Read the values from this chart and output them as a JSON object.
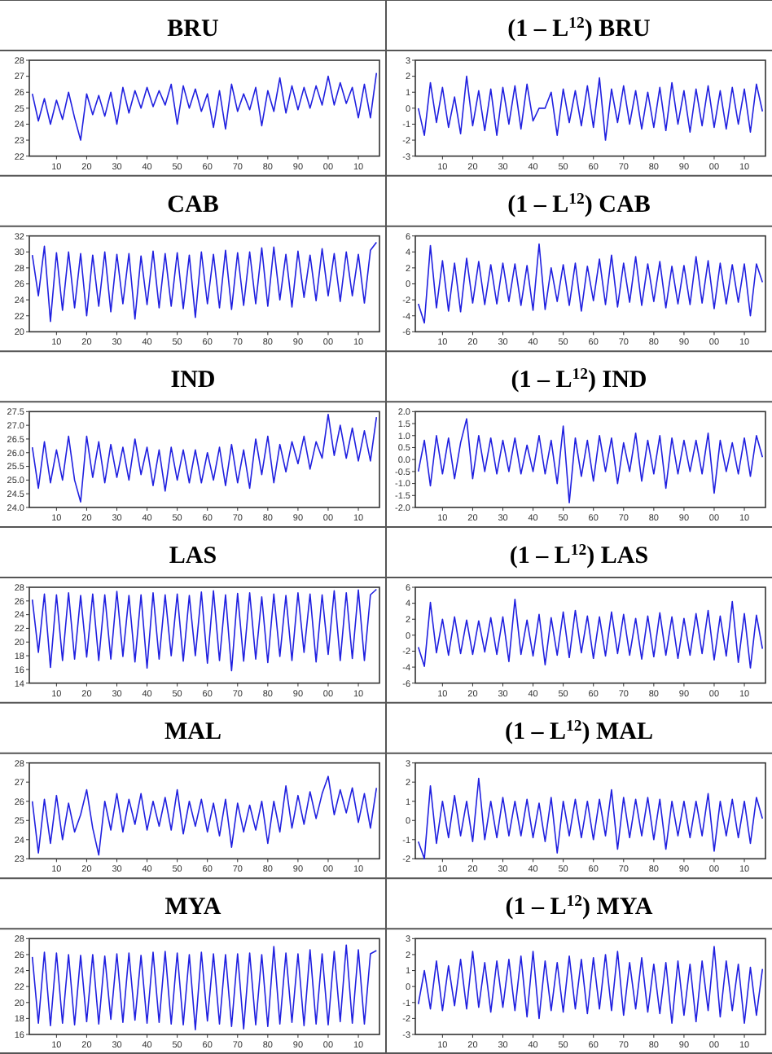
{
  "chart_data": [
    {
      "type": "line",
      "title": "BRU",
      "x": [
        1902,
        1904,
        1906,
        1908,
        1910,
        1912,
        1914,
        1916,
        1918,
        1920,
        1922,
        1924,
        1926,
        1928,
        1930,
        1932,
        1934,
        1936,
        1938,
        1940,
        1942,
        1944,
        1946,
        1948,
        1950,
        1952,
        1954,
        1956,
        1958,
        1960,
        1962,
        1964,
        1966,
        1968,
        1970,
        1972,
        1974,
        1976,
        1978,
        1980,
        1982,
        1984,
        1986,
        1988,
        1990,
        1992,
        1994,
        1996,
        1998,
        2000,
        2002,
        2004,
        2006,
        2008,
        2010,
        2012,
        2014,
        2016
      ],
      "xlim": [
        1901,
        2017
      ],
      "xticks": [
        {
          "value": 1910,
          "label": "10"
        },
        {
          "value": 1920,
          "label": "20"
        },
        {
          "value": 1930,
          "label": "30"
        },
        {
          "value": 1940,
          "label": "40"
        },
        {
          "value": 1950,
          "label": "50"
        },
        {
          "value": 1960,
          "label": "60"
        },
        {
          "value": 1970,
          "label": "70"
        },
        {
          "value": 1980,
          "label": "80"
        },
        {
          "value": 1990,
          "label": "90"
        },
        {
          "value": 2000,
          "label": "00"
        },
        {
          "value": 2010,
          "label": "10"
        }
      ],
      "ylim": [
        22,
        28
      ],
      "yticks": [
        22,
        23,
        24,
        25,
        26,
        27,
        28
      ],
      "series": [
        {
          "color": "#2020e0",
          "values": [
            25.9,
            24.2,
            25.6,
            24.0,
            25.5,
            24.3,
            26.0,
            24.4,
            23.0,
            25.9,
            24.6,
            25.8,
            24.5,
            26.0,
            24.0,
            26.3,
            24.7,
            26.1,
            25.0,
            26.3,
            25.1,
            26.1,
            25.2,
            26.5,
            24.0,
            26.4,
            25.0,
            26.2,
            24.8,
            25.9,
            23.8,
            26.1,
            23.7,
            26.5,
            24.8,
            25.9,
            24.9,
            26.3,
            23.9,
            26.1,
            24.8,
            26.9,
            24.7,
            26.4,
            24.9,
            26.3,
            25.0,
            26.4,
            25.2,
            27.0,
            25.2,
            26.6,
            25.3,
            26.3,
            24.4,
            26.5,
            24.4,
            27.2
          ]
        }
      ]
    },
    {
      "type": "line",
      "title": "(1 – L$^{12}$) BRU",
      "x": [
        1902,
        1904,
        1906,
        1908,
        1910,
        1912,
        1914,
        1916,
        1918,
        1920,
        1922,
        1924,
        1926,
        1928,
        1930,
        1932,
        1934,
        1936,
        1938,
        1940,
        1942,
        1944,
        1946,
        1948,
        1950,
        1952,
        1954,
        1956,
        1958,
        1960,
        1962,
        1964,
        1966,
        1968,
        1970,
        1972,
        1974,
        1976,
        1978,
        1980,
        1982,
        1984,
        1986,
        1988,
        1990,
        1992,
        1994,
        1996,
        1998,
        2000,
        2002,
        2004,
        2006,
        2008,
        2010,
        2012,
        2014,
        2016
      ],
      "xlim": [
        1901,
        2017
      ],
      "xticks": [
        {
          "value": 1910,
          "label": "10"
        },
        {
          "value": 1920,
          "label": "20"
        },
        {
          "value": 1930,
          "label": "30"
        },
        {
          "value": 1940,
          "label": "40"
        },
        {
          "value": 1950,
          "label": "50"
        },
        {
          "value": 1960,
          "label": "60"
        },
        {
          "value": 1970,
          "label": "70"
        },
        {
          "value": 1980,
          "label": "80"
        },
        {
          "value": 1990,
          "label": "90"
        },
        {
          "value": 2000,
          "label": "00"
        },
        {
          "value": 2010,
          "label": "10"
        }
      ],
      "ylim": [
        -3,
        3
      ],
      "yticks": [
        -3,
        -2,
        -1,
        0,
        1,
        2,
        3
      ],
      "series": [
        {
          "color": "#2020e0",
          "values": [
            0.0,
            -1.7,
            1.6,
            -0.9,
            1.3,
            -1.2,
            0.7,
            -1.6,
            2.0,
            -1.1,
            1.1,
            -1.4,
            1.2,
            -1.7,
            1.3,
            -1.0,
            1.4,
            -1.3,
            1.5,
            -0.8,
            0.0,
            0.0,
            1.0,
            -1.7,
            1.2,
            -0.9,
            1.1,
            -1.1,
            1.4,
            -1.2,
            1.9,
            -2.0,
            1.2,
            -0.9,
            1.4,
            -1.0,
            1.1,
            -1.3,
            1.0,
            -1.2,
            1.3,
            -1.4,
            1.6,
            -1.0,
            1.1,
            -1.5,
            1.2,
            -1.1,
            1.4,
            -1.2,
            1.1,
            -1.3,
            1.3,
            -1.0,
            1.2,
            -1.5,
            1.5,
            -0.2
          ]
        }
      ]
    },
    {
      "type": "line",
      "title": "CAB",
      "x": [
        1902,
        1904,
        1906,
        1908,
        1910,
        1912,
        1914,
        1916,
        1918,
        1920,
        1922,
        1924,
        1926,
        1928,
        1930,
        1932,
        1934,
        1936,
        1938,
        1940,
        1942,
        1944,
        1946,
        1948,
        1950,
        1952,
        1954,
        1956,
        1958,
        1960,
        1962,
        1964,
        1966,
        1968,
        1970,
        1972,
        1974,
        1976,
        1978,
        1980,
        1982,
        1984,
        1986,
        1988,
        1990,
        1992,
        1994,
        1996,
        1998,
        2000,
        2002,
        2004,
        2006,
        2008,
        2010,
        2012,
        2014,
        2016
      ],
      "xlim": [
        1901,
        2017
      ],
      "xticks": [
        {
          "value": 1910,
          "label": "10"
        },
        {
          "value": 1920,
          "label": "20"
        },
        {
          "value": 1930,
          "label": "30"
        },
        {
          "value": 1940,
          "label": "40"
        },
        {
          "value": 1950,
          "label": "50"
        },
        {
          "value": 1960,
          "label": "60"
        },
        {
          "value": 1970,
          "label": "70"
        },
        {
          "value": 1980,
          "label": "80"
        },
        {
          "value": 1990,
          "label": "90"
        },
        {
          "value": 2000,
          "label": "00"
        },
        {
          "value": 2010,
          "label": "10"
        }
      ],
      "ylim": [
        20,
        32
      ],
      "yticks": [
        20,
        22,
        24,
        26,
        28,
        30,
        32
      ],
      "series": [
        {
          "color": "#2020e0",
          "values": [
            29.6,
            24.5,
            30.7,
            21.3,
            29.9,
            22.7,
            30.0,
            23.0,
            29.8,
            22.0,
            29.6,
            23.2,
            30.0,
            22.5,
            29.7,
            23.5,
            29.8,
            21.6,
            29.5,
            23.4,
            30.1,
            23.0,
            29.8,
            23.2,
            29.9,
            22.9,
            29.6,
            21.8,
            30.0,
            23.5,
            29.7,
            23.0,
            30.2,
            22.8,
            29.9,
            23.3,
            30.0,
            23.5,
            30.5,
            23.2,
            30.6,
            24.0,
            29.7,
            23.1,
            30.1,
            24.3,
            29.6,
            23.9,
            30.4,
            24.5,
            29.8,
            23.8,
            30.0,
            24.5,
            29.7,
            23.6,
            30.2,
            31.2
          ]
        }
      ]
    },
    {
      "type": "line",
      "title": "(1 – L$^{12}$) CAB",
      "x": [
        1902,
        1904,
        1906,
        1908,
        1910,
        1912,
        1914,
        1916,
        1918,
        1920,
        1922,
        1924,
        1926,
        1928,
        1930,
        1932,
        1934,
        1936,
        1938,
        1940,
        1942,
        1944,
        1946,
        1948,
        1950,
        1952,
        1954,
        1956,
        1958,
        1960,
        1962,
        1964,
        1966,
        1968,
        1970,
        1972,
        1974,
        1976,
        1978,
        1980,
        1982,
        1984,
        1986,
        1988,
        1990,
        1992,
        1994,
        1996,
        1998,
        2000,
        2002,
        2004,
        2006,
        2008,
        2010,
        2012,
        2014,
        2016
      ],
      "xlim": [
        1901,
        2017
      ],
      "xticks": [
        {
          "value": 1910,
          "label": "10"
        },
        {
          "value": 1920,
          "label": "20"
        },
        {
          "value": 1930,
          "label": "30"
        },
        {
          "value": 1940,
          "label": "40"
        },
        {
          "value": 1950,
          "label": "50"
        },
        {
          "value": 1960,
          "label": "60"
        },
        {
          "value": 1970,
          "label": "70"
        },
        {
          "value": 1980,
          "label": "80"
        },
        {
          "value": 1990,
          "label": "90"
        },
        {
          "value": 2000,
          "label": "00"
        },
        {
          "value": 2010,
          "label": "10"
        }
      ],
      "ylim": [
        -6,
        6
      ],
      "yticks": [
        -6,
        -4,
        -2,
        0,
        2,
        4,
        6
      ],
      "series": [
        {
          "color": "#2020e0",
          "values": [
            -2.5,
            -4.9,
            4.8,
            -3.0,
            2.9,
            -3.4,
            2.6,
            -3.5,
            3.2,
            -2.4,
            2.8,
            -2.6,
            2.4,
            -2.5,
            2.6,
            -2.2,
            2.5,
            -2.7,
            2.3,
            -3.3,
            5.0,
            -3.2,
            2.0,
            -2.2,
            2.4,
            -2.7,
            2.6,
            -3.4,
            2.2,
            -2.1,
            3.1,
            -2.6,
            3.6,
            -2.9,
            2.6,
            -2.3,
            3.4,
            -2.7,
            2.5,
            -2.2,
            2.8,
            -3.0,
            2.2,
            -2.5,
            2.3,
            -2.6,
            3.4,
            -2.4,
            2.9,
            -3.1,
            2.6,
            -2.5,
            2.4,
            -2.3,
            2.5,
            -4.0,
            2.5,
            0.2
          ]
        }
      ]
    },
    {
      "type": "line",
      "title": "IND",
      "x": [
        1902,
        1904,
        1906,
        1908,
        1910,
        1912,
        1914,
        1916,
        1918,
        1920,
        1922,
        1924,
        1926,
        1928,
        1930,
        1932,
        1934,
        1936,
        1938,
        1940,
        1942,
        1944,
        1946,
        1948,
        1950,
        1952,
        1954,
        1956,
        1958,
        1960,
        1962,
        1964,
        1966,
        1968,
        1970,
        1972,
        1974,
        1976,
        1978,
        1980,
        1982,
        1984,
        1986,
        1988,
        1990,
        1992,
        1994,
        1996,
        1998,
        2000,
        2002,
        2004,
        2006,
        2008,
        2010,
        2012,
        2014,
        2016
      ],
      "xlim": [
        1901,
        2017
      ],
      "xticks": [
        {
          "value": 1910,
          "label": "10"
        },
        {
          "value": 1920,
          "label": "20"
        },
        {
          "value": 1930,
          "label": "30"
        },
        {
          "value": 1940,
          "label": "40"
        },
        {
          "value": 1950,
          "label": "50"
        },
        {
          "value": 1960,
          "label": "60"
        },
        {
          "value": 1970,
          "label": "70"
        },
        {
          "value": 1980,
          "label": "80"
        },
        {
          "value": 1990,
          "label": "90"
        },
        {
          "value": 2000,
          "label": "00"
        },
        {
          "value": 2010,
          "label": "10"
        }
      ],
      "ylim": [
        24,
        27.5
      ],
      "yticks": [
        {
          "value": 24,
          "label": "24.0"
        },
        {
          "value": 24.5,
          "label": "24.5"
        },
        {
          "value": 25,
          "label": "25.0"
        },
        {
          "value": 25.5,
          "label": "25.5"
        },
        {
          "value": 26,
          "label": "26.0"
        },
        {
          "value": 26.5,
          "label": "26.5"
        },
        {
          "value": 27,
          "label": "27.0"
        },
        {
          "value": 27.5,
          "label": "27.5"
        }
      ],
      "series": [
        {
          "color": "#2020e0",
          "values": [
            26.2,
            24.7,
            26.4,
            24.9,
            26.1,
            25.0,
            26.6,
            25.0,
            24.2,
            26.6,
            25.1,
            26.4,
            24.9,
            26.3,
            25.1,
            26.2,
            25.0,
            26.5,
            25.2,
            26.2,
            24.8,
            26.1,
            24.6,
            26.2,
            25.0,
            26.1,
            24.9,
            26.1,
            24.9,
            26.0,
            25.0,
            26.2,
            24.8,
            26.3,
            24.9,
            26.1,
            24.7,
            26.5,
            25.2,
            26.6,
            24.9,
            26.3,
            25.3,
            26.4,
            25.6,
            26.6,
            25.4,
            26.4,
            25.8,
            27.4,
            25.9,
            27.0,
            25.8,
            26.9,
            25.7,
            26.8,
            25.7,
            27.3
          ]
        }
      ]
    },
    {
      "type": "line",
      "title": "(1 – L$^{12}$) IND",
      "x": [
        1902,
        1904,
        1906,
        1908,
        1910,
        1912,
        1914,
        1916,
        1918,
        1920,
        1922,
        1924,
        1926,
        1928,
        1930,
        1932,
        1934,
        1936,
        1938,
        1940,
        1942,
        1944,
        1946,
        1948,
        1950,
        1952,
        1954,
        1956,
        1958,
        1960,
        1962,
        1964,
        1966,
        1968,
        1970,
        1972,
        1974,
        1976,
        1978,
        1980,
        1982,
        1984,
        1986,
        1988,
        1990,
        1992,
        1994,
        1996,
        1998,
        2000,
        2002,
        2004,
        2006,
        2008,
        2010,
        2012,
        2014,
        2016
      ],
      "xlim": [
        1901,
        2017
      ],
      "xticks": [
        {
          "value": 1910,
          "label": "10"
        },
        {
          "value": 1920,
          "label": "20"
        },
        {
          "value": 1930,
          "label": "30"
        },
        {
          "value": 1940,
          "label": "40"
        },
        {
          "value": 1950,
          "label": "50"
        },
        {
          "value": 1960,
          "label": "60"
        },
        {
          "value": 1970,
          "label": "70"
        },
        {
          "value": 1980,
          "label": "80"
        },
        {
          "value": 1990,
          "label": "90"
        },
        {
          "value": 2000,
          "label": "00"
        },
        {
          "value": 2010,
          "label": "10"
        }
      ],
      "ylim": [
        -2,
        2
      ],
      "yticks": [
        {
          "value": -2,
          "label": "-2.0"
        },
        {
          "value": -1.5,
          "label": "-1.5"
        },
        {
          "value": -1,
          "label": "-1.0"
        },
        {
          "value": -0.5,
          "label": "-0.5"
        },
        {
          "value": 0,
          "label": "0.0"
        },
        {
          "value": 0.5,
          "label": "0.5"
        },
        {
          "value": 1,
          "label": "1.0"
        },
        {
          "value": 1.5,
          "label": "1.5"
        },
        {
          "value": 2,
          "label": "2.0"
        }
      ],
      "series": [
        {
          "color": "#2020e0",
          "values": [
            -0.5,
            0.8,
            -1.1,
            1.0,
            -0.6,
            0.9,
            -0.8,
            0.7,
            1.7,
            -0.8,
            1.0,
            -0.5,
            0.9,
            -0.6,
            0.8,
            -0.5,
            0.9,
            -0.6,
            0.6,
            -0.5,
            1.0,
            -0.6,
            0.8,
            -1.0,
            1.4,
            -1.8,
            0.9,
            -0.7,
            0.8,
            -0.9,
            1.0,
            -0.5,
            0.9,
            -1.0,
            0.7,
            -0.5,
            1.1,
            -0.9,
            0.8,
            -0.6,
            1.0,
            -1.2,
            0.9,
            -0.6,
            0.8,
            -0.5,
            0.8,
            -0.6,
            1.1,
            -1.4,
            0.8,
            -0.5,
            0.7,
            -0.6,
            0.9,
            -0.7,
            1.0,
            0.1
          ]
        }
      ]
    },
    {
      "type": "line",
      "title": "LAS",
      "x": [
        1902,
        1904,
        1906,
        1908,
        1910,
        1912,
        1914,
        1916,
        1918,
        1920,
        1922,
        1924,
        1926,
        1928,
        1930,
        1932,
        1934,
        1936,
        1938,
        1940,
        1942,
        1944,
        1946,
        1948,
        1950,
        1952,
        1954,
        1956,
        1958,
        1960,
        1962,
        1964,
        1966,
        1968,
        1970,
        1972,
        1974,
        1976,
        1978,
        1980,
        1982,
        1984,
        1986,
        1988,
        1990,
        1992,
        1994,
        1996,
        1998,
        2000,
        2002,
        2004,
        2006,
        2008,
        2010,
        2012,
        2014,
        2016
      ],
      "xlim": [
        1901,
        2017
      ],
      "xticks": [
        {
          "value": 1910,
          "label": "10"
        },
        {
          "value": 1920,
          "label": "20"
        },
        {
          "value": 1930,
          "label": "30"
        },
        {
          "value": 1940,
          "label": "40"
        },
        {
          "value": 1950,
          "label": "50"
        },
        {
          "value": 1960,
          "label": "60"
        },
        {
          "value": 1970,
          "label": "70"
        },
        {
          "value": 1980,
          "label": "80"
        },
        {
          "value": 1990,
          "label": "90"
        },
        {
          "value": 2000,
          "label": "00"
        },
        {
          "value": 2010,
          "label": "10"
        }
      ],
      "ylim": [
        14,
        28
      ],
      "yticks": [
        14,
        16,
        18,
        20,
        22,
        24,
        26,
        28
      ],
      "series": [
        {
          "color": "#2020e0",
          "values": [
            26.2,
            18.5,
            27.0,
            16.3,
            26.9,
            17.3,
            27.2,
            17.5,
            26.8,
            17.8,
            27.0,
            17.3,
            26.9,
            17.5,
            27.4,
            17.9,
            26.8,
            17.1,
            26.9,
            16.2,
            27.2,
            17.5,
            26.9,
            18.0,
            27.0,
            17.2,
            26.8,
            18.0,
            27.3,
            16.9,
            27.5,
            17.3,
            26.9,
            15.8,
            27.1,
            17.2,
            27.2,
            17.5,
            26.6,
            17.0,
            27.0,
            17.9,
            26.8,
            17.3,
            27.2,
            18.5,
            27.0,
            17.1,
            26.9,
            18.2,
            27.5,
            17.3,
            27.2,
            17.6,
            27.6,
            17.3,
            26.9,
            27.7
          ]
        }
      ]
    },
    {
      "type": "line",
      "title": "(1 – L$^{12}$) LAS",
      "x": [
        1902,
        1904,
        1906,
        1908,
        1910,
        1912,
        1914,
        1916,
        1918,
        1920,
        1922,
        1924,
        1926,
        1928,
        1930,
        1932,
        1934,
        1936,
        1938,
        1940,
        1942,
        1944,
        1946,
        1948,
        1950,
        1952,
        1954,
        1956,
        1958,
        1960,
        1962,
        1964,
        1966,
        1968,
        1970,
        1972,
        1974,
        1976,
        1978,
        1980,
        1982,
        1984,
        1986,
        1988,
        1990,
        1992,
        1994,
        1996,
        1998,
        2000,
        2002,
        2004,
        2006,
        2008,
        2010,
        2012,
        2014,
        2016
      ],
      "xlim": [
        1901,
        2017
      ],
      "xticks": [
        {
          "value": 1910,
          "label": "10"
        },
        {
          "value": 1920,
          "label": "20"
        },
        {
          "value": 1930,
          "label": "30"
        },
        {
          "value": 1940,
          "label": "40"
        },
        {
          "value": 1950,
          "label": "50"
        },
        {
          "value": 1960,
          "label": "60"
        },
        {
          "value": 1970,
          "label": "70"
        },
        {
          "value": 1980,
          "label": "80"
        },
        {
          "value": 1990,
          "label": "90"
        },
        {
          "value": 2000,
          "label": "00"
        },
        {
          "value": 2010,
          "label": "10"
        }
      ],
      "ylim": [
        -6,
        6
      ],
      "yticks": [
        -6,
        -4,
        -2,
        0,
        2,
        4,
        6
      ],
      "series": [
        {
          "color": "#2020e0",
          "values": [
            -1.5,
            -3.9,
            4.1,
            -2.2,
            2.0,
            -2.5,
            2.3,
            -2.3,
            1.9,
            -2.4,
            1.8,
            -2.1,
            2.2,
            -2.4,
            2.3,
            -3.3,
            4.5,
            -2.4,
            1.9,
            -2.6,
            2.6,
            -3.7,
            2.2,
            -2.5,
            2.9,
            -2.8,
            3.1,
            -2.2,
            2.4,
            -2.9,
            2.3,
            -2.6,
            2.9,
            -2.3,
            2.6,
            -2.5,
            2.1,
            -3.0,
            2.4,
            -2.7,
            2.8,
            -2.5,
            2.3,
            -2.9,
            2.1,
            -2.5,
            2.7,
            -2.3,
            3.1,
            -3.1,
            2.4,
            -2.6,
            4.2,
            -3.4,
            2.7,
            -4.1,
            2.5,
            -1.7
          ]
        }
      ]
    },
    {
      "type": "line",
      "title": "MAL",
      "x": [
        1902,
        1904,
        1906,
        1908,
        1910,
        1912,
        1914,
        1916,
        1918,
        1920,
        1922,
        1924,
        1926,
        1928,
        1930,
        1932,
        1934,
        1936,
        1938,
        1940,
        1942,
        1944,
        1946,
        1948,
        1950,
        1952,
        1954,
        1956,
        1958,
        1960,
        1962,
        1964,
        1966,
        1968,
        1970,
        1972,
        1974,
        1976,
        1978,
        1980,
        1982,
        1984,
        1986,
        1988,
        1990,
        1992,
        1994,
        1996,
        1998,
        2000,
        2002,
        2004,
        2006,
        2008,
        2010,
        2012,
        2014,
        2016
      ],
      "xlim": [
        1901,
        2017
      ],
      "xticks": [
        {
          "value": 1910,
          "label": "10"
        },
        {
          "value": 1920,
          "label": "20"
        },
        {
          "value": 1930,
          "label": "30"
        },
        {
          "value": 1940,
          "label": "40"
        },
        {
          "value": 1950,
          "label": "50"
        },
        {
          "value": 1960,
          "label": "60"
        },
        {
          "value": 1970,
          "label": "70"
        },
        {
          "value": 1980,
          "label": "80"
        },
        {
          "value": 1990,
          "label": "90"
        },
        {
          "value": 2000,
          "label": "00"
        },
        {
          "value": 2010,
          "label": "10"
        }
      ],
      "ylim": [
        23,
        28
      ],
      "yticks": [
        23,
        24,
        25,
        26,
        27,
        28
      ],
      "series": [
        {
          "color": "#2020e0",
          "values": [
            26.0,
            23.3,
            26.1,
            23.8,
            26.3,
            24.0,
            25.9,
            24.4,
            25.3,
            26.6,
            24.6,
            23.2,
            26.0,
            24.5,
            26.4,
            24.4,
            26.1,
            24.8,
            26.4,
            24.5,
            26.0,
            24.7,
            26.2,
            24.5,
            26.6,
            24.3,
            26.0,
            24.7,
            26.1,
            24.4,
            25.9,
            24.2,
            26.1,
            23.6,
            25.9,
            24.4,
            25.8,
            24.5,
            26.0,
            23.8,
            26.0,
            24.4,
            26.8,
            24.6,
            26.3,
            24.8,
            26.5,
            25.1,
            26.4,
            27.3,
            25.3,
            26.6,
            25.4,
            26.7,
            24.9,
            26.4,
            24.6,
            26.7
          ]
        }
      ]
    },
    {
      "type": "line",
      "title": "(1 – L$^{12}$) MAL",
      "x": [
        1902,
        1904,
        1906,
        1908,
        1910,
        1912,
        1914,
        1916,
        1918,
        1920,
        1922,
        1924,
        1926,
        1928,
        1930,
        1932,
        1934,
        1936,
        1938,
        1940,
        1942,
        1944,
        1946,
        1948,
        1950,
        1952,
        1954,
        1956,
        1958,
        1960,
        1962,
        1964,
        1966,
        1968,
        1970,
        1972,
        1974,
        1976,
        1978,
        1980,
        1982,
        1984,
        1986,
        1988,
        1990,
        1992,
        1994,
        1996,
        1998,
        2000,
        2002,
        2004,
        2006,
        2008,
        2010,
        2012,
        2014,
        2016
      ],
      "xlim": [
        1901,
        2017
      ],
      "xticks": [
        {
          "value": 1910,
          "label": "10"
        },
        {
          "value": 1920,
          "label": "20"
        },
        {
          "value": 1930,
          "label": "30"
        },
        {
          "value": 1940,
          "label": "40"
        },
        {
          "value": 1950,
          "label": "50"
        },
        {
          "value": 1960,
          "label": "60"
        },
        {
          "value": 1970,
          "label": "70"
        },
        {
          "value": 1980,
          "label": "80"
        },
        {
          "value": 1990,
          "label": "90"
        },
        {
          "value": 2000,
          "label": "00"
        },
        {
          "value": 2010,
          "label": "10"
        }
      ],
      "ylim": [
        -2,
        3
      ],
      "yticks": [
        -2,
        -1,
        0,
        1,
        2,
        3
      ],
      "series": [
        {
          "color": "#2020e0",
          "values": [
            -1.1,
            -2.0,
            1.8,
            -1.2,
            1.0,
            -0.9,
            1.3,
            -0.8,
            1.0,
            -1.1,
            2.2,
            -1.0,
            1.0,
            -0.9,
            1.2,
            -0.8,
            1.0,
            -0.8,
            1.1,
            -0.9,
            0.9,
            -1.1,
            1.2,
            -1.7,
            1.0,
            -0.8,
            1.1,
            -0.9,
            1.0,
            -1.0,
            1.1,
            -0.8,
            1.6,
            -1.5,
            1.2,
            -0.9,
            1.1,
            -0.8,
            1.2,
            -1.0,
            1.1,
            -1.5,
            1.0,
            -0.8,
            1.0,
            -0.9,
            1.0,
            -0.8,
            1.4,
            -1.6,
            1.0,
            -0.8,
            1.1,
            -0.9,
            1.0,
            -1.2,
            1.2,
            0.1
          ]
        }
      ]
    },
    {
      "type": "line",
      "title": "MYA",
      "x": [
        1902,
        1904,
        1906,
        1908,
        1910,
        1912,
        1914,
        1916,
        1918,
        1920,
        1922,
        1924,
        1926,
        1928,
        1930,
        1932,
        1934,
        1936,
        1938,
        1940,
        1942,
        1944,
        1946,
        1948,
        1950,
        1952,
        1954,
        1956,
        1958,
        1960,
        1962,
        1964,
        1966,
        1968,
        1970,
        1972,
        1974,
        1976,
        1978,
        1980,
        1982,
        1984,
        1986,
        1988,
        1990,
        1992,
        1994,
        1996,
        1998,
        2000,
        2002,
        2004,
        2006,
        2008,
        2010,
        2012,
        2014,
        2016
      ],
      "xlim": [
        1901,
        2017
      ],
      "xticks": [
        {
          "value": 1910,
          "label": "10"
        },
        {
          "value": 1920,
          "label": "20"
        },
        {
          "value": 1930,
          "label": "30"
        },
        {
          "value": 1940,
          "label": "40"
        },
        {
          "value": 1950,
          "label": "50"
        },
        {
          "value": 1960,
          "label": "60"
        },
        {
          "value": 1970,
          "label": "70"
        },
        {
          "value": 1980,
          "label": "80"
        },
        {
          "value": 1990,
          "label": "90"
        },
        {
          "value": 2000,
          "label": "00"
        },
        {
          "value": 2010,
          "label": "10"
        }
      ],
      "ylim": [
        16,
        28
      ],
      "yticks": [
        16,
        18,
        20,
        22,
        24,
        26,
        28
      ],
      "series": [
        {
          "color": "#2020e0",
          "values": [
            25.7,
            17.4,
            26.3,
            17.1,
            26.2,
            17.4,
            26.0,
            17.2,
            25.9,
            17.6,
            26.0,
            17.3,
            25.8,
            17.9,
            26.1,
            17.5,
            26.2,
            17.8,
            25.9,
            17.4,
            26.3,
            17.5,
            26.4,
            17.3,
            26.2,
            17.2,
            26.0,
            16.6,
            26.3,
            17.7,
            26.1,
            17.3,
            26.0,
            17.0,
            26.1,
            16.7,
            26.2,
            17.2,
            26.0,
            17.0,
            27.0,
            17.3,
            26.2,
            17.5,
            26.1,
            17.1,
            26.6,
            17.3,
            26.1,
            17.2,
            26.4,
            17.6,
            27.2,
            17.4,
            26.6,
            17.3,
            26.1,
            26.5
          ]
        }
      ]
    },
    {
      "type": "line",
      "title": "(1 – L$^{12}$) MYA",
      "x": [
        1902,
        1904,
        1906,
        1908,
        1910,
        1912,
        1914,
        1916,
        1918,
        1920,
        1922,
        1924,
        1926,
        1928,
        1930,
        1932,
        1934,
        1936,
        1938,
        1940,
        1942,
        1944,
        1946,
        1948,
        1950,
        1952,
        1954,
        1956,
        1958,
        1960,
        1962,
        1964,
        1966,
        1968,
        1970,
        1972,
        1974,
        1976,
        1978,
        1980,
        1982,
        1984,
        1986,
        1988,
        1990,
        1992,
        1994,
        1996,
        1998,
        2000,
        2002,
        2004,
        2006,
        2008,
        2010,
        2012,
        2014,
        2016
      ],
      "xlim": [
        1901,
        2017
      ],
      "xticks": [
        {
          "value": 1910,
          "label": "10"
        },
        {
          "value": 1920,
          "label": "20"
        },
        {
          "value": 1930,
          "label": "30"
        },
        {
          "value": 1940,
          "label": "40"
        },
        {
          "value": 1950,
          "label": "50"
        },
        {
          "value": 1960,
          "label": "60"
        },
        {
          "value": 1970,
          "label": "70"
        },
        {
          "value": 1980,
          "label": "80"
        },
        {
          "value": 1990,
          "label": "90"
        },
        {
          "value": 2000,
          "label": "00"
        },
        {
          "value": 2010,
          "label": "10"
        }
      ],
      "ylim": [
        -3,
        3
      ],
      "yticks": [
        -3,
        -2,
        -1,
        0,
        1,
        2,
        3
      ],
      "series": [
        {
          "color": "#2020e0",
          "values": [
            -1.1,
            1.0,
            -1.4,
            1.6,
            -1.5,
            1.3,
            -1.2,
            1.7,
            -1.4,
            2.2,
            -1.3,
            1.5,
            -1.6,
            1.6,
            -1.3,
            1.7,
            -1.5,
            1.9,
            -1.9,
            2.2,
            -2.0,
            1.6,
            -1.5,
            1.5,
            -1.6,
            1.9,
            -1.4,
            1.7,
            -1.7,
            1.8,
            -1.4,
            2.0,
            -1.5,
            2.2,
            -1.8,
            1.5,
            -1.4,
            1.8,
            -1.6,
            1.4,
            -1.7,
            1.5,
            -2.3,
            1.6,
            -1.8,
            1.4,
            -2.2,
            1.6,
            -1.5,
            2.5,
            -1.9,
            1.6,
            -1.5,
            1.4,
            -2.3,
            1.2,
            -1.8,
            1.1
          ]
        }
      ]
    }
  ]
}
